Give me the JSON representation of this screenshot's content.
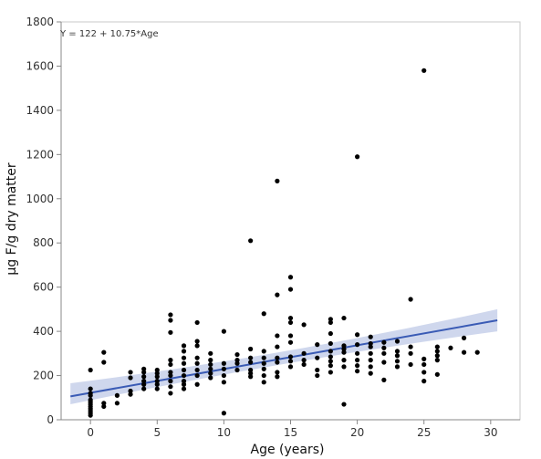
{
  "chart_data": {
    "type": "scatter",
    "equation_label": "Y = 122 + 10.75*Age",
    "xlabel": "Age (years)",
    "ylabel": "µg F/g dry matter",
    "xlim": [
      -2.2,
      32.2
    ],
    "ylim": [
      0,
      1800
    ],
    "xticks": [
      0,
      5,
      10,
      15,
      20,
      25,
      30
    ],
    "yticks": [
      0,
      200,
      400,
      600,
      800,
      1000,
      1200,
      1400,
      1600,
      1800
    ],
    "grid": false,
    "regression": {
      "intercept": 122,
      "slope": 10.75,
      "x_range": [
        -1.5,
        30.5
      ],
      "ci_lower_ends": [
        70,
        400
      ],
      "ci_upper_ends": [
        165,
        500
      ]
    },
    "colors": {
      "points": "#000000",
      "line": "#3a5bb5",
      "band": "#c7d0ea",
      "axis": "#888888"
    },
    "points": [
      [
        0,
        20
      ],
      [
        0,
        30
      ],
      [
        0,
        40
      ],
      [
        0,
        50
      ],
      [
        0,
        60
      ],
      [
        0,
        70
      ],
      [
        0,
        80
      ],
      [
        0,
        90
      ],
      [
        0,
        110
      ],
      [
        0,
        120
      ],
      [
        0,
        140
      ],
      [
        0,
        225
      ],
      [
        1,
        60
      ],
      [
        1,
        75
      ],
      [
        1,
        260
      ],
      [
        1,
        305
      ],
      [
        2,
        75
      ],
      [
        2,
        110
      ],
      [
        3,
        115
      ],
      [
        3,
        130
      ],
      [
        3,
        190
      ],
      [
        3,
        215
      ],
      [
        4,
        140
      ],
      [
        4,
        160
      ],
      [
        4,
        175
      ],
      [
        4,
        195
      ],
      [
        4,
        215
      ],
      [
        4,
        230
      ],
      [
        5,
        140
      ],
      [
        5,
        160
      ],
      [
        5,
        175
      ],
      [
        5,
        195
      ],
      [
        5,
        210
      ],
      [
        5,
        225
      ],
      [
        6,
        120
      ],
      [
        6,
        150
      ],
      [
        6,
        175
      ],
      [
        6,
        200
      ],
      [
        6,
        215
      ],
      [
        6,
        250
      ],
      [
        6,
        270
      ],
      [
        6,
        395
      ],
      [
        6,
        450
      ],
      [
        6,
        475
      ],
      [
        7,
        140
      ],
      [
        7,
        160
      ],
      [
        7,
        175
      ],
      [
        7,
        200
      ],
      [
        7,
        225
      ],
      [
        7,
        255
      ],
      [
        7,
        280
      ],
      [
        7,
        310
      ],
      [
        7,
        335
      ],
      [
        8,
        160
      ],
      [
        8,
        200
      ],
      [
        8,
        225
      ],
      [
        8,
        255
      ],
      [
        8,
        280
      ],
      [
        8,
        335
      ],
      [
        8,
        355
      ],
      [
        8,
        440
      ],
      [
        9,
        190
      ],
      [
        9,
        210
      ],
      [
        9,
        230
      ],
      [
        9,
        250
      ],
      [
        9,
        270
      ],
      [
        9,
        300
      ],
      [
        10,
        30
      ],
      [
        10,
        170
      ],
      [
        10,
        200
      ],
      [
        10,
        230
      ],
      [
        10,
        255
      ],
      [
        10,
        400
      ],
      [
        11,
        225
      ],
      [
        11,
        255
      ],
      [
        11,
        270
      ],
      [
        11,
        295
      ],
      [
        12,
        195
      ],
      [
        12,
        210
      ],
      [
        12,
        225
      ],
      [
        12,
        260
      ],
      [
        12,
        280
      ],
      [
        12,
        320
      ],
      [
        12,
        810
      ],
      [
        13,
        170
      ],
      [
        13,
        200
      ],
      [
        13,
        230
      ],
      [
        13,
        255
      ],
      [
        13,
        280
      ],
      [
        13,
        310
      ],
      [
        13,
        480
      ],
      [
        14,
        195
      ],
      [
        14,
        215
      ],
      [
        14,
        260
      ],
      [
        14,
        280
      ],
      [
        14,
        330
      ],
      [
        14,
        380
      ],
      [
        14,
        565
      ],
      [
        14,
        1080
      ],
      [
        15,
        240
      ],
      [
        15,
        265
      ],
      [
        15,
        285
      ],
      [
        15,
        350
      ],
      [
        15,
        380
      ],
      [
        15,
        440
      ],
      [
        15,
        460
      ],
      [
        15,
        590
      ],
      [
        15,
        645
      ],
      [
        16,
        250
      ],
      [
        16,
        270
      ],
      [
        16,
        300
      ],
      [
        16,
        430
      ],
      [
        17,
        200
      ],
      [
        17,
        225
      ],
      [
        17,
        280
      ],
      [
        17,
        340
      ],
      [
        18,
        215
      ],
      [
        18,
        245
      ],
      [
        18,
        265
      ],
      [
        18,
        285
      ],
      [
        18,
        310
      ],
      [
        18,
        345
      ],
      [
        18,
        390
      ],
      [
        18,
        440
      ],
      [
        18,
        455
      ],
      [
        19,
        70
      ],
      [
        19,
        240
      ],
      [
        19,
        270
      ],
      [
        19,
        305
      ],
      [
        19,
        320
      ],
      [
        19,
        335
      ],
      [
        19,
        460
      ],
      [
        20,
        220
      ],
      [
        20,
        245
      ],
      [
        20,
        270
      ],
      [
        20,
        300
      ],
      [
        20,
        340
      ],
      [
        20,
        385
      ],
      [
        20,
        1190
      ],
      [
        21,
        210
      ],
      [
        21,
        240
      ],
      [
        21,
        270
      ],
      [
        21,
        300
      ],
      [
        21,
        330
      ],
      [
        21,
        345
      ],
      [
        21,
        375
      ],
      [
        22,
        180
      ],
      [
        22,
        260
      ],
      [
        22,
        300
      ],
      [
        22,
        325
      ],
      [
        22,
        350
      ],
      [
        23,
        240
      ],
      [
        23,
        265
      ],
      [
        23,
        290
      ],
      [
        23,
        310
      ],
      [
        23,
        355
      ],
      [
        24,
        250
      ],
      [
        24,
        300
      ],
      [
        24,
        330
      ],
      [
        24,
        545
      ],
      [
        25,
        175
      ],
      [
        25,
        215
      ],
      [
        25,
        250
      ],
      [
        25,
        275
      ],
      [
        25,
        1580
      ],
      [
        26,
        205
      ],
      [
        26,
        270
      ],
      [
        26,
        290
      ],
      [
        26,
        310
      ],
      [
        26,
        330
      ],
      [
        27,
        325
      ],
      [
        28,
        305
      ],
      [
        28,
        370
      ],
      [
        29,
        305
      ]
    ]
  }
}
